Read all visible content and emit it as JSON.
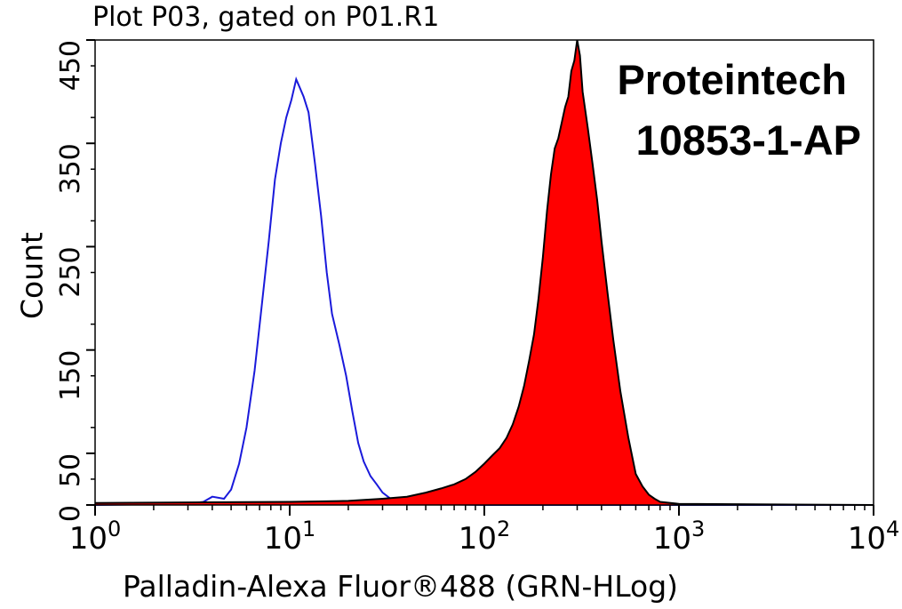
{
  "title": "Plot P03, gated on P01.R1",
  "watermark": {
    "company": "Proteintech",
    "catalog": "10853-1-AP"
  },
  "chart_data": {
    "type": "area",
    "xlabel": "Palladin-Alexa Fluor®488 (GRN-HLog)",
    "ylabel": "Count",
    "x_scale": "log",
    "xlim": [
      1,
      10000
    ],
    "ylim": [
      0,
      450
    ],
    "x_ticks": [
      {
        "value": 1,
        "base": "10",
        "exp": "0"
      },
      {
        "value": 10,
        "base": "10",
        "exp": "1"
      },
      {
        "value": 100,
        "base": "10",
        "exp": "2"
      },
      {
        "value": 1000,
        "base": "10",
        "exp": "3"
      },
      {
        "value": 10000,
        "base": "10",
        "exp": "4"
      }
    ],
    "y_ticks": [
      "0",
      "50",
      "150",
      "250",
      "350",
      "450"
    ],
    "y_tick_values": [
      0,
      50,
      150,
      250,
      350,
      450
    ],
    "colors": {
      "control": "#1a1adb",
      "sample": "#ff0000",
      "outline": "#000000"
    },
    "series": [
      {
        "role": "control",
        "style": "line",
        "x": [
          1,
          3,
          3.6,
          4,
          4.6,
          5,
          5.5,
          6,
          6.6,
          7.2,
          7.8,
          8.4,
          9,
          9.6,
          10.2,
          10.8,
          11.2,
          11.8,
          12.5,
          13.5,
          14.5,
          15.5,
          16.5,
          18,
          19.5,
          21,
          22.5,
          24,
          26,
          28,
          30,
          33,
          36,
          40,
          50,
          100,
          1000,
          10000
        ],
        "y": [
          0,
          1,
          3,
          8,
          6,
          15,
          40,
          75,
          130,
          195,
          255,
          315,
          350,
          375,
          392,
          412,
          405,
          395,
          380,
          330,
          280,
          225,
          185,
          155,
          125,
          90,
          60,
          42,
          28,
          20,
          12,
          6,
          3,
          2,
          1,
          0,
          0,
          0
        ]
      },
      {
        "role": "sample",
        "style": "filled",
        "x": [
          1,
          10,
          20,
          30,
          40,
          50,
          60,
          70,
          80,
          90,
          100,
          110,
          120,
          130,
          140,
          150,
          160,
          170,
          180,
          190,
          200,
          210,
          220,
          230,
          240,
          250,
          260,
          270,
          280,
          290,
          300,
          310,
          320,
          340,
          360,
          380,
          400,
          430,
          460,
          500,
          550,
          600,
          650,
          700,
          750,
          800,
          1000,
          10000
        ],
        "y": [
          2,
          3,
          4,
          6,
          8,
          12,
          16,
          20,
          25,
          32,
          40,
          48,
          55,
          65,
          78,
          95,
          115,
          140,
          165,
          200,
          240,
          285,
          320,
          345,
          355,
          370,
          385,
          395,
          420,
          430,
          450,
          435,
          400,
          365,
          330,
          295,
          255,
          205,
          160,
          110,
          65,
          30,
          18,
          10,
          6,
          3,
          1,
          0
        ]
      }
    ]
  }
}
